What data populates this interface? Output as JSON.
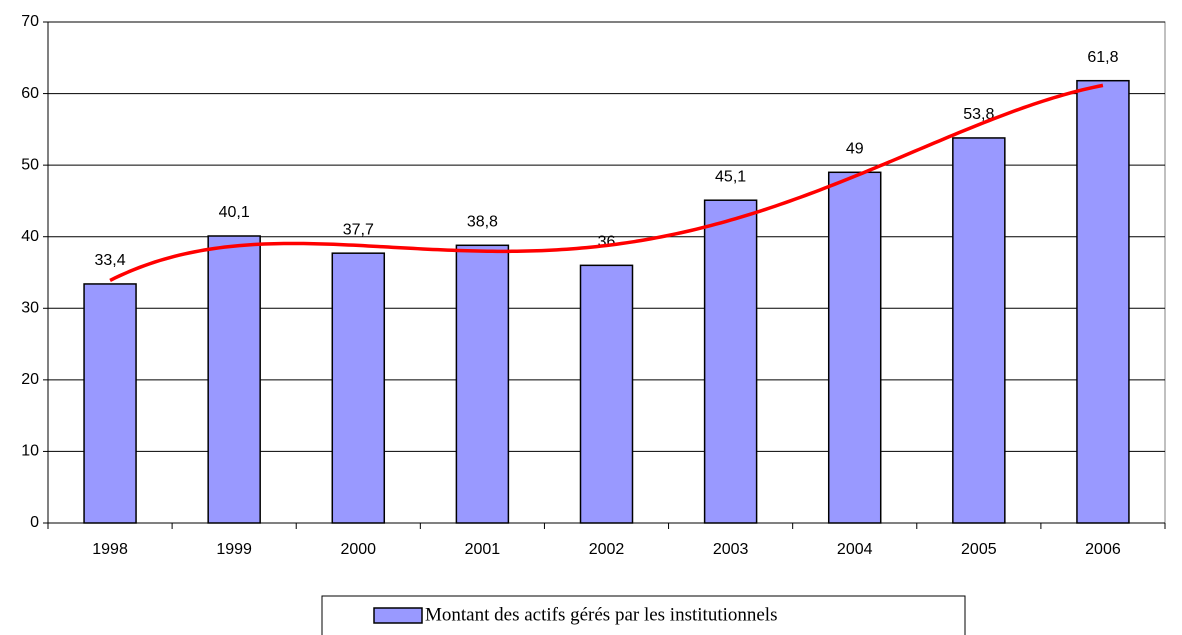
{
  "chart_data": {
    "type": "bar",
    "categories": [
      "1998",
      "1999",
      "2000",
      "2001",
      "2002",
      "2003",
      "2004",
      "2005",
      "2006"
    ],
    "series": [
      {
        "name": "Montant des actifs gérés par les institutionnels",
        "color": "#9999ff",
        "values": [
          33.4,
          40.1,
          37.7,
          38.8,
          36,
          45.1,
          49,
          53.8,
          61.8
        ],
        "value_labels": [
          "33,4",
          "40,1",
          "37,7",
          "38,8",
          "36",
          "45,1",
          "49",
          "53,8",
          "61,8"
        ]
      }
    ],
    "ylim": [
      0,
      70
    ],
    "yticks": [
      0,
      10,
      20,
      30,
      40,
      50,
      60,
      70
    ],
    "grid": true,
    "trendline": "polynomial",
    "trendline_color": "#ff0000",
    "legend": "bottom"
  }
}
